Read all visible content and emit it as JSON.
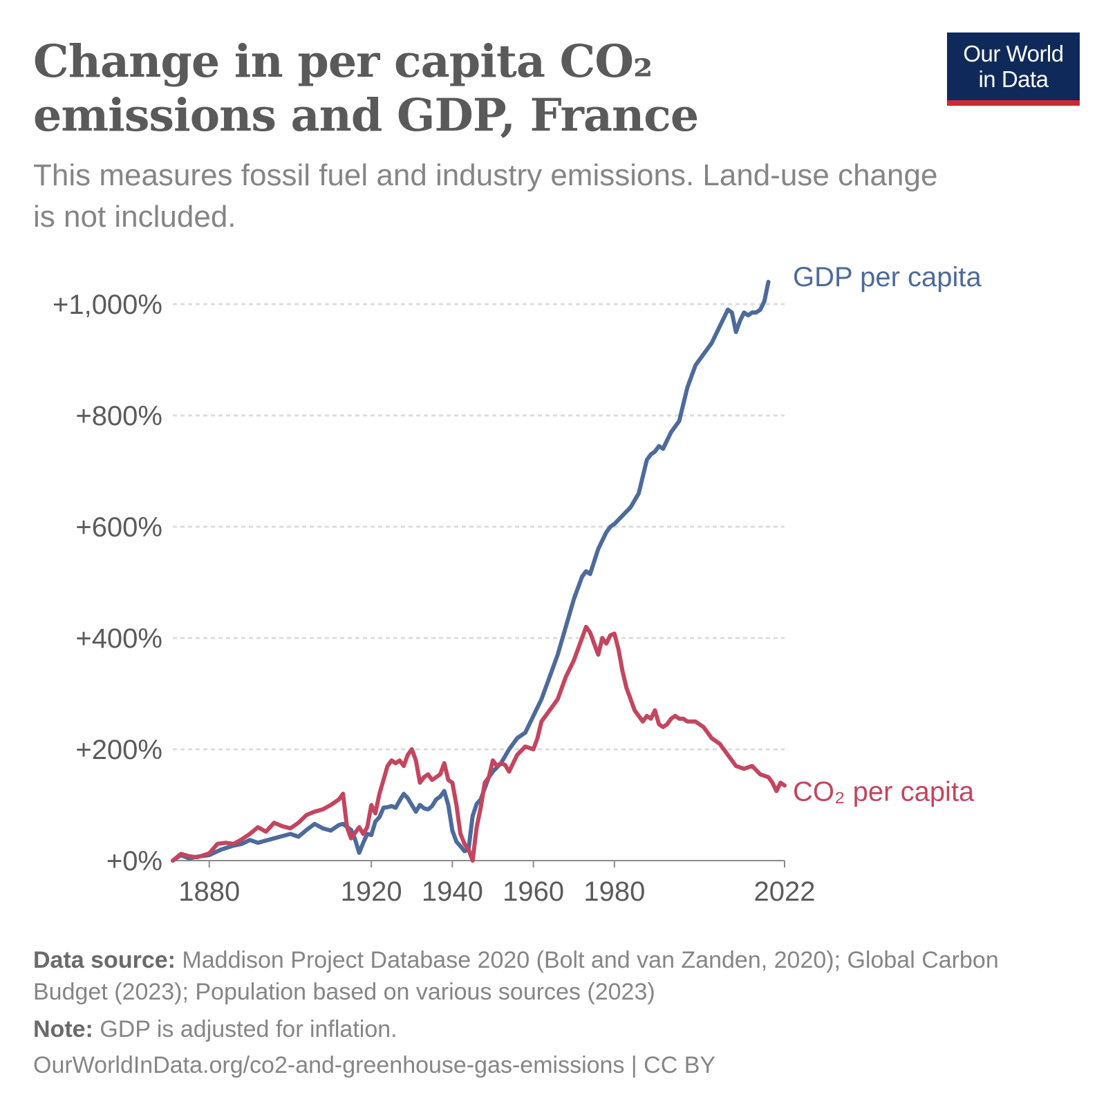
{
  "header": {
    "title_line1": "Change in per capita CO₂",
    "title_line2": "emissions and GDP, France",
    "subtitle": "This measures fossil fuel and industry emissions. Land-use change is not included.",
    "logo_line1": "Our World",
    "logo_line2": "in Data"
  },
  "footer": {
    "source_label": "Data source:",
    "source_text": "Maddison Project Database 2020 (Bolt and van Zanden, 2020); Global Carbon Budget (2023); Population based on various sources (2023)",
    "note_label": "Note:",
    "note_text": "GDP is adjusted for inflation.",
    "url": "OurWorldInData.org/co2-and-greenhouse-gas-emissions | CC BY"
  },
  "colors": {
    "gdp": "#4c6a9c",
    "co2": "#c4455e",
    "grid": "#dddddd",
    "axis_text": "#5b5b5b",
    "logo_bg": "#0f2a5a",
    "logo_underline": "#ce2832"
  },
  "chart_data": {
    "type": "line",
    "title": "Change in per capita CO₂ emissions and GDP, France",
    "xlabel": "",
    "ylabel": "",
    "xlim": [
      1871,
      2022
    ],
    "ylim": [
      0,
      1000
    ],
    "y_ticks": [
      0,
      200,
      400,
      600,
      800,
      1000
    ],
    "y_tick_labels": [
      "+0%",
      "+200%",
      "+400%",
      "+600%",
      "+800%",
      "+1,000%"
    ],
    "x_ticks": [
      1880,
      1920,
      1940,
      1960,
      1980,
      2022
    ],
    "x_tick_labels": [
      "1880",
      "1920",
      "1940",
      "1960",
      "1980",
      "2022"
    ],
    "grid": "horizontal dotted",
    "legend": "inline labels at line ends",
    "series": [
      {
        "name": "GDP per capita",
        "color": "#4c6a9c",
        "x": [
          1871,
          1873,
          1875,
          1877,
          1880,
          1883,
          1886,
          1888,
          1890,
          1892,
          1894,
          1896,
          1898,
          1900,
          1902,
          1904,
          1906,
          1908,
          1910,
          1912,
          1913,
          1915,
          1916,
          1917,
          1918,
          1919,
          1920,
          1921,
          1922,
          1923,
          1924,
          1925,
          1926,
          1927,
          1928,
          1929,
          1930,
          1931,
          1932,
          1933,
          1934,
          1935,
          1936,
          1937,
          1938,
          1939,
          1940,
          1941,
          1942,
          1943,
          1944,
          1945,
          1946,
          1947,
          1948,
          1949,
          1950,
          1952,
          1954,
          1956,
          1958,
          1960,
          1962,
          1964,
          1966,
          1968,
          1970,
          1972,
          1973,
          1974,
          1976,
          1978,
          1979,
          1980,
          1982,
          1984,
          1986,
          1988,
          1989,
          1990,
          1991,
          1992,
          1993,
          1994,
          1996,
          1998,
          2000,
          2002,
          2004,
          2006,
          2007,
          2008,
          2009,
          2010,
          2011,
          2012,
          2013,
          2014,
          2015,
          2016,
          2017,
          2018
        ],
        "values": [
          0,
          10,
          4,
          7,
          10,
          20,
          27,
          30,
          37,
          32,
          36,
          40,
          44,
          48,
          43,
          55,
          66,
          58,
          54,
          64,
          66,
          55,
          38,
          14,
          32,
          48,
          46,
          70,
          78,
          95,
          96,
          98,
          95,
          108,
          120,
          112,
          100,
          88,
          100,
          94,
          92,
          98,
          110,
          115,
          125,
          100,
          54,
          34,
          26,
          17,
          20,
          80,
          102,
          110,
          130,
          150,
          160,
          175,
          200,
          220,
          230,
          260,
          290,
          330,
          370,
          420,
          470,
          510,
          520,
          515,
          560,
          590,
          600,
          605,
          620,
          635,
          660,
          720,
          730,
          735,
          745,
          740,
          755,
          770,
          790,
          850,
          890,
          910,
          930,
          960,
          975,
          990,
          985,
          950,
          970,
          985,
          980,
          985,
          985,
          990,
          1005,
          1040
        ]
      },
      {
        "name": "CO₂ per capita",
        "color": "#c4455e",
        "x": [
          1871,
          1873,
          1875,
          1877,
          1880,
          1882,
          1884,
          1886,
          1888,
          1890,
          1892,
          1894,
          1896,
          1898,
          1900,
          1902,
          1904,
          1906,
          1908,
          1910,
          1912,
          1913,
          1914,
          1915,
          1916,
          1917,
          1918,
          1919,
          1920,
          1921,
          1922,
          1923,
          1924,
          1925,
          1926,
          1927,
          1928,
          1929,
          1930,
          1931,
          1932,
          1933,
          1934,
          1935,
          1936,
          1937,
          1938,
          1939,
          1940,
          1941,
          1942,
          1943,
          1944,
          1945,
          1946,
          1947,
          1948,
          1949,
          1950,
          1951,
          1952,
          1953,
          1954,
          1956,
          1958,
          1960,
          1961,
          1962,
          1964,
          1966,
          1968,
          1970,
          1972,
          1973,
          1974,
          1975,
          1976,
          1977,
          1978,
          1979,
          1980,
          1981,
          1982,
          1983,
          1984,
          1985,
          1986,
          1987,
          1988,
          1989,
          1990,
          1991,
          1992,
          1993,
          1994,
          1995,
          1996,
          1997,
          1998,
          2000,
          2002,
          2004,
          2006,
          2008,
          2010,
          2012,
          2014,
          2016,
          2018,
          2019,
          2020,
          2021,
          2022
        ],
        "values": [
          0,
          12,
          8,
          6,
          13,
          30,
          32,
          30,
          38,
          48,
          60,
          52,
          68,
          62,
          58,
          68,
          82,
          88,
          92,
          100,
          110,
          120,
          60,
          40,
          50,
          60,
          48,
          60,
          100,
          85,
          120,
          145,
          170,
          180,
          175,
          180,
          170,
          190,
          200,
          180,
          140,
          150,
          155,
          145,
          150,
          155,
          175,
          145,
          140,
          100,
          48,
          30,
          20,
          0,
          60,
          95,
          140,
          150,
          180,
          170,
          175,
          172,
          160,
          190,
          205,
          200,
          220,
          250,
          270,
          290,
          330,
          360,
          400,
          420,
          410,
          390,
          370,
          400,
          390,
          405,
          408,
          380,
          340,
          310,
          290,
          270,
          260,
          250,
          260,
          255,
          270,
          245,
          240,
          245,
          255,
          260,
          255,
          255,
          250,
          250,
          240,
          220,
          210,
          190,
          170,
          165,
          170,
          155,
          150,
          140,
          125,
          140,
          135
        ]
      }
    ]
  }
}
